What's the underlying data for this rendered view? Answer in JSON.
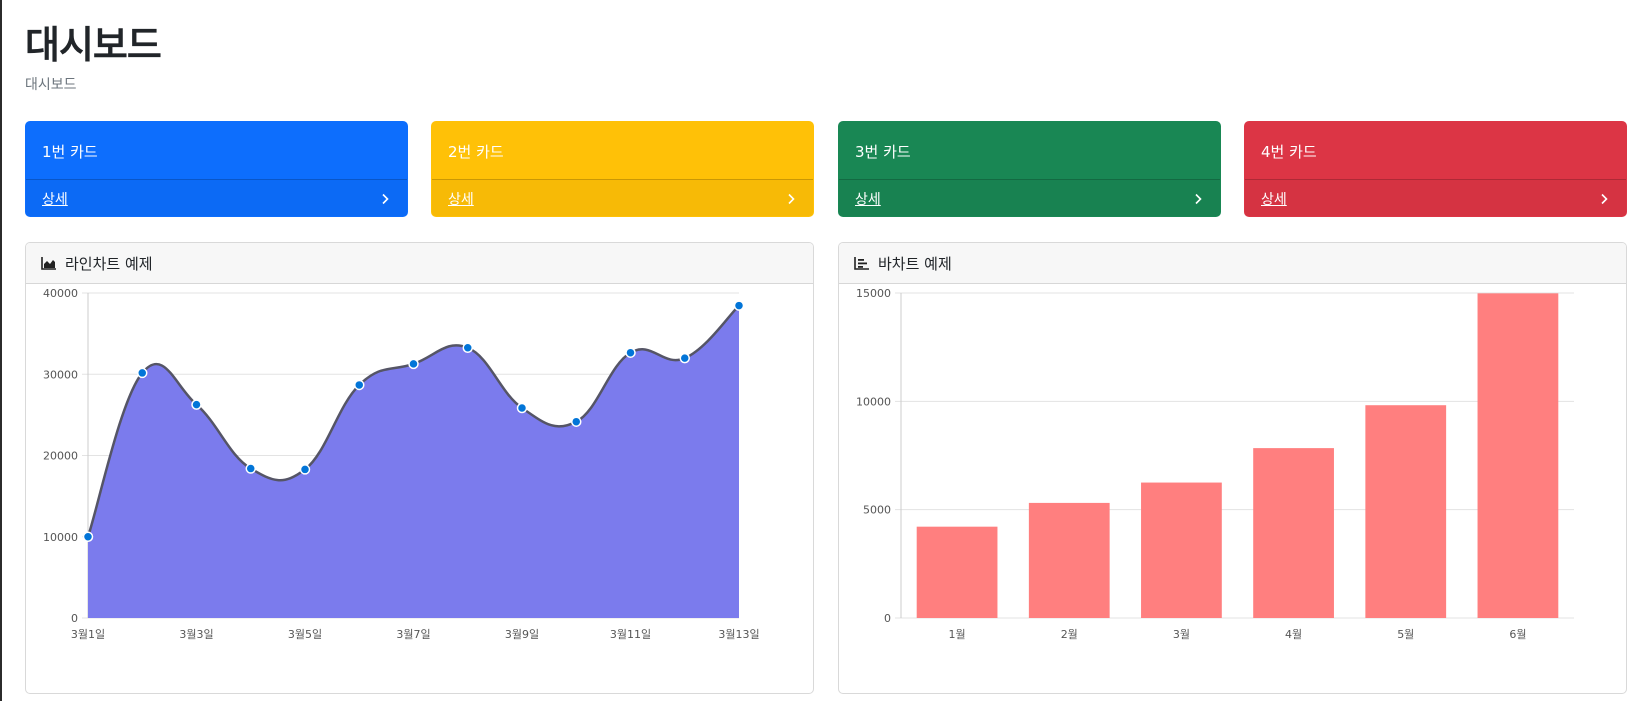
{
  "page": {
    "title": "대시보드",
    "breadcrumb": "대시보드"
  },
  "cards": [
    {
      "title": "1번 카드",
      "link": "상세",
      "color": "#0d6efd"
    },
    {
      "title": "2번 카드",
      "link": "상세",
      "color": "#ffc107"
    },
    {
      "title": "3번 카드",
      "link": "상세",
      "color": "#198754"
    },
    {
      "title": "4번 카드",
      "link": "상세",
      "color": "#dc3545"
    }
  ],
  "panels": {
    "line": {
      "title": "라인차트 예제",
      "icon": "area-chart-icon"
    },
    "bar": {
      "title": "바차트 예제",
      "icon": "bar-chart-icon"
    }
  },
  "chart_data": [
    {
      "type": "area",
      "x": [
        "3월1일",
        "3월2일",
        "3월3일",
        "3월4일",
        "3월5일",
        "3월6일",
        "3월7일",
        "3월8일",
        "3월9일",
        "3월10일",
        "3월11일",
        "3월12일",
        "3월13일"
      ],
      "x_tick_labels": [
        "3월1일",
        "3월3일",
        "3월5일",
        "3월7일",
        "3월9일",
        "3월11일",
        "3월13일"
      ],
      "values": [
        10000,
        30162,
        26263,
        18394,
        18287,
        28682,
        31274,
        33259,
        25849,
        24159,
        32651,
        31984,
        38451
      ],
      "ylim": [
        0,
        40000
      ],
      "yticks": [
        0,
        10000,
        20000,
        30000,
        40000
      ],
      "fill_color": "#7b7bed",
      "line_color": "#555566",
      "point_color": "#0275d8",
      "grid": true
    },
    {
      "type": "bar",
      "categories": [
        "1월",
        "2월",
        "3월",
        "4월",
        "5월",
        "6월"
      ],
      "values": [
        4215,
        5312,
        6251,
        7841,
        9821,
        14984
      ],
      "ylim": [
        0,
        15000
      ],
      "yticks": [
        0,
        5000,
        10000,
        15000
      ],
      "bar_color": "#ff7f7f",
      "grid": true
    }
  ]
}
